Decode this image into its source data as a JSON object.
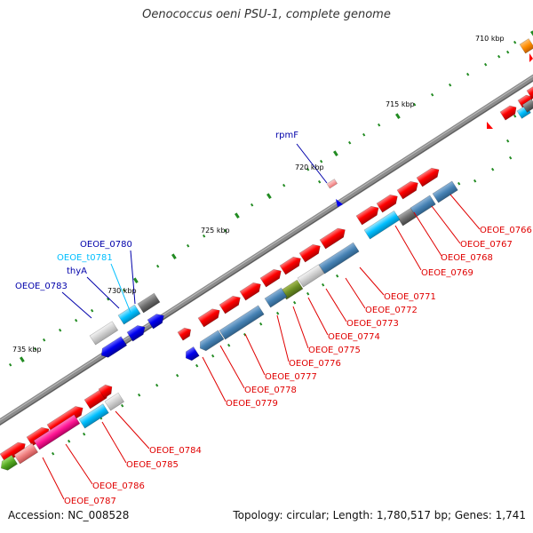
{
  "title": "Oenococcus oeni PSU-1, complete genome",
  "accession": "Accession: NC_008528",
  "summary": "Topology: circular; Length: 1,780,517 bp; Genes: 1,741",
  "colors": {
    "backbone": "#8c8c8c",
    "cds_forward": "#ff0000",
    "cds_reverse": "#0000ee",
    "label_red": "#e00000",
    "label_blue": "#0000aa",
    "trna": "#00bfff",
    "rrna_grey": "#777777",
    "feature_steelblue": "#4682b4",
    "feature_pink": "#ff1493",
    "feature_green": "#55aa22",
    "feature_orange": "#ff8c00",
    "tick": "#228b22"
  },
  "scale_labels": [
    "710 kbp",
    "715 kbp",
    "720 kbp",
    "725 kbp",
    "730 kbp",
    "735 kbp"
  ],
  "gene_labels_right": [
    "OEOE_0766",
    "OEOE_0767",
    "OEOE_0768",
    "OEOE_0769",
    "OEOE_0771",
    "OEOE_0772",
    "OEOE_0773",
    "OEOE_0774",
    "OEOE_0775",
    "OEOE_0776",
    "OEOE_0777",
    "OEOE_0778",
    "OEOE_0779"
  ],
  "gene_labels_bottom": [
    "OEOE_0784",
    "OEOE_0785",
    "OEOE_0786",
    "OEOE_0787"
  ],
  "gene_labels_top": [
    "rpmF",
    "OEOE_0780",
    "OEOE_t0781",
    "thyA",
    "OEOE_0783"
  ]
}
